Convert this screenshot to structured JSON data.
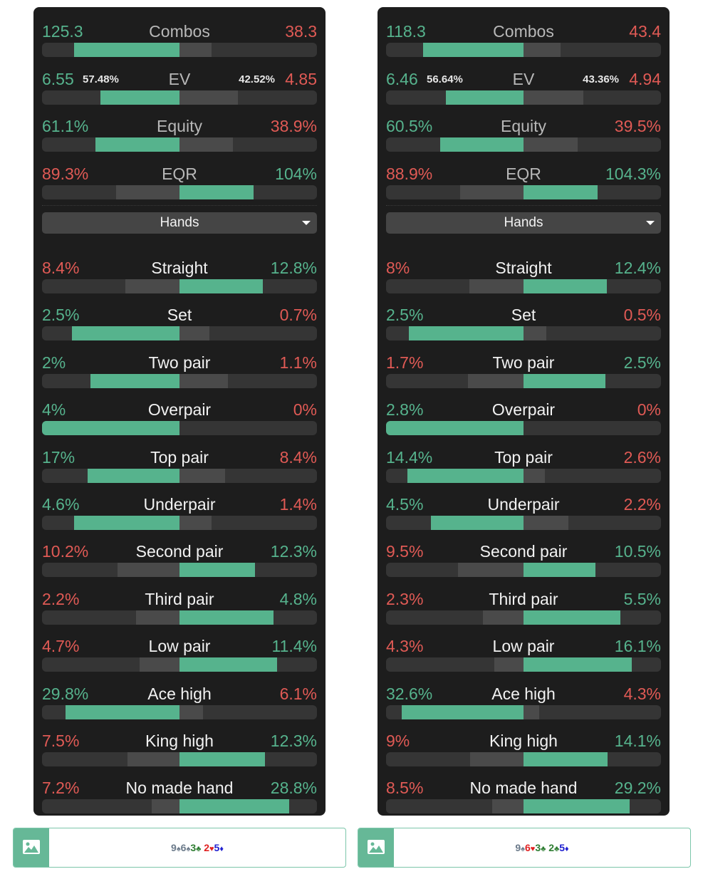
{
  "colors": {
    "green": "#56b38d",
    "red": "#e05a55",
    "light_segment": "#4a4a4a",
    "track": "#353535",
    "spade": "#6b7a8a",
    "club": "#2e7d32",
    "heart": "#e02020",
    "diamond": "#2020d0"
  },
  "panels": [
    {
      "stats": [
        {
          "label": "Combos",
          "left": "125.3",
          "right": "38.3",
          "lval": 125.3,
          "rval": 38.3
        },
        {
          "label": "EV",
          "left": "6.55",
          "right": "4.85",
          "left_pct": "57.48%",
          "right_pct": "42.52%",
          "lval": 57.48,
          "rval": 42.52
        },
        {
          "label": "Equity",
          "left": "61.1%",
          "right": "38.9%",
          "lval": 61.1,
          "rval": 38.9
        },
        {
          "label": "EQR",
          "left": "89.3%",
          "right": "104%",
          "lval": 89.3,
          "rval": 104
        }
      ],
      "dropdown": "Hands",
      "hands": [
        {
          "label": "Straight",
          "left": "8.4%",
          "right": "12.8%",
          "lval": 8.4,
          "rval": 12.8
        },
        {
          "label": "Set",
          "left": "2.5%",
          "right": "0.7%",
          "lval": 2.5,
          "rval": 0.7
        },
        {
          "label": "Two pair",
          "left": "2%",
          "right": "1.1%",
          "lval": 2,
          "rval": 1.1
        },
        {
          "label": "Overpair",
          "left": "4%",
          "right": "0%",
          "lval": 4,
          "rval": 0
        },
        {
          "label": "Top pair",
          "left": "17%",
          "right": "8.4%",
          "lval": 17,
          "rval": 8.4
        },
        {
          "label": "Underpair",
          "left": "4.6%",
          "right": "1.4%",
          "lval": 4.6,
          "rval": 1.4
        },
        {
          "label": "Second pair",
          "left": "10.2%",
          "right": "12.3%",
          "lval": 10.2,
          "rval": 12.3
        },
        {
          "label": "Third pair",
          "left": "2.2%",
          "right": "4.8%",
          "lval": 2.2,
          "rval": 4.8
        },
        {
          "label": "Low pair",
          "left": "4.7%",
          "right": "11.4%",
          "lval": 4.7,
          "rval": 11.4
        },
        {
          "label": "Ace high",
          "left": "29.8%",
          "right": "6.1%",
          "lval": 29.8,
          "rval": 6.1
        },
        {
          "label": "King high",
          "left": "7.5%",
          "right": "12.3%",
          "lval": 7.5,
          "rval": 12.3
        },
        {
          "label": "No made hand",
          "left": "7.2%",
          "right": "28.8%",
          "lval": 7.2,
          "rval": 28.8
        }
      ],
      "board": [
        {
          "rank": "9",
          "suit": "spade"
        },
        {
          "rank": "6",
          "suit": "spade"
        },
        {
          "rank": "3",
          "suit": "club"
        },
        {
          "rank": " ",
          "suit": "gap"
        },
        {
          "rank": "2",
          "suit": "heart"
        },
        {
          "rank": "5",
          "suit": "diamond"
        }
      ]
    },
    {
      "stats": [
        {
          "label": "Combos",
          "left": "118.3",
          "right": "43.4",
          "lval": 118.3,
          "rval": 43.4
        },
        {
          "label": "EV",
          "left": "6.46",
          "right": "4.94",
          "left_pct": "56.64%",
          "right_pct": "43.36%",
          "lval": 56.64,
          "rval": 43.36
        },
        {
          "label": "Equity",
          "left": "60.5%",
          "right": "39.5%",
          "lval": 60.5,
          "rval": 39.5
        },
        {
          "label": "EQR",
          "left": "88.9%",
          "right": "104.3%",
          "lval": 88.9,
          "rval": 104.3
        }
      ],
      "dropdown": "Hands",
      "hands": [
        {
          "label": "Straight",
          "left": "8%",
          "right": "12.4%",
          "lval": 8,
          "rval": 12.4
        },
        {
          "label": "Set",
          "left": "2.5%",
          "right": "0.5%",
          "lval": 2.5,
          "rval": 0.5
        },
        {
          "label": "Two pair",
          "left": "1.7%",
          "right": "2.5%",
          "lval": 1.7,
          "rval": 2.5
        },
        {
          "label": "Overpair",
          "left": "2.8%",
          "right": "0%",
          "lval": 2.8,
          "rval": 0
        },
        {
          "label": "Top pair",
          "left": "14.4%",
          "right": "2.6%",
          "lval": 14.4,
          "rval": 2.6
        },
        {
          "label": "Underpair",
          "left": "4.5%",
          "right": "2.2%",
          "lval": 4.5,
          "rval": 2.2
        },
        {
          "label": "Second pair",
          "left": "9.5%",
          "right": "10.5%",
          "lval": 9.5,
          "rval": 10.5
        },
        {
          "label": "Third pair",
          "left": "2.3%",
          "right": "5.5%",
          "lval": 2.3,
          "rval": 5.5
        },
        {
          "label": "Low pair",
          "left": "4.3%",
          "right": "16.1%",
          "lval": 4.3,
          "rval": 16.1
        },
        {
          "label": "Ace high",
          "left": "32.6%",
          "right": "4.3%",
          "lval": 32.6,
          "rval": 4.3
        },
        {
          "label": "King high",
          "left": "9%",
          "right": "14.1%",
          "lval": 9,
          "rval": 14.1
        },
        {
          "label": "No made hand",
          "left": "8.5%",
          "right": "29.2%",
          "lval": 8.5,
          "rval": 29.2
        }
      ],
      "board": [
        {
          "rank": "9",
          "suit": "spade"
        },
        {
          "rank": "6",
          "suit": "heart"
        },
        {
          "rank": "3",
          "suit": "club"
        },
        {
          "rank": " ",
          "suit": "gap"
        },
        {
          "rank": "2",
          "suit": "club"
        },
        {
          "rank": "5",
          "suit": "diamond"
        }
      ]
    }
  ]
}
